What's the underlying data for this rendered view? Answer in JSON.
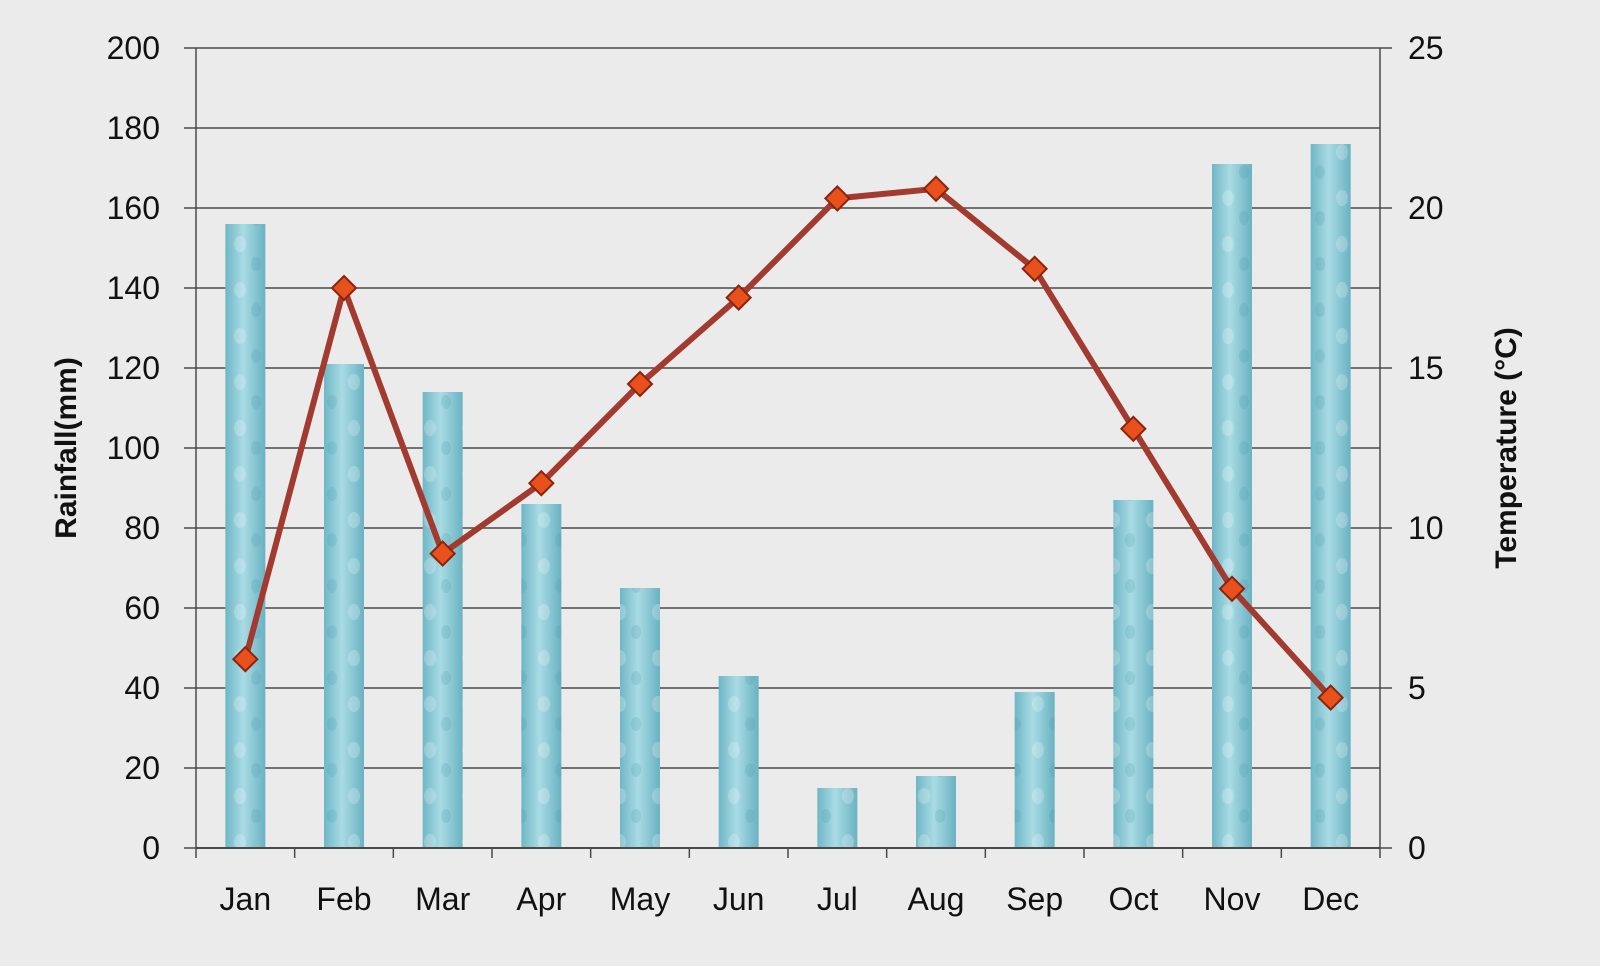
{
  "chart_data": {
    "type": "bar",
    "categories": [
      "Jan",
      "Feb",
      "Mar",
      "Apr",
      "May",
      "Jun",
      "Jul",
      "Aug",
      "Sep",
      "Oct",
      "Nov",
      "Dec"
    ],
    "series": [
      {
        "type": "bar",
        "axis": "left",
        "values": [
          156,
          121,
          114,
          86,
          65,
          43,
          15,
          18,
          39,
          87,
          171,
          176
        ],
        "color": "#8fcad6"
      },
      {
        "type": "line",
        "axis": "right",
        "values": [
          5.9,
          17.5,
          9.2,
          11.4,
          14.5,
          17.2,
          20.3,
          20.6,
          18.1,
          13.1,
          8.1,
          4.7
        ],
        "color": "#a33a2f",
        "marker_color": "#e8501c"
      }
    ],
    "ylabel": "Rainfall(mm)",
    "y2label": "Temperature (°C)",
    "ylim": [
      0,
      200
    ],
    "y2lim": [
      0,
      25
    ],
    "yticks": [
      "0",
      "20",
      "40",
      "60",
      "80",
      "100",
      "120",
      "140",
      "160",
      "180",
      "200"
    ],
    "y2ticks": [
      "0",
      "5",
      "10",
      "15",
      "20",
      "25"
    ],
    "grid": true,
    "legend": "none"
  }
}
